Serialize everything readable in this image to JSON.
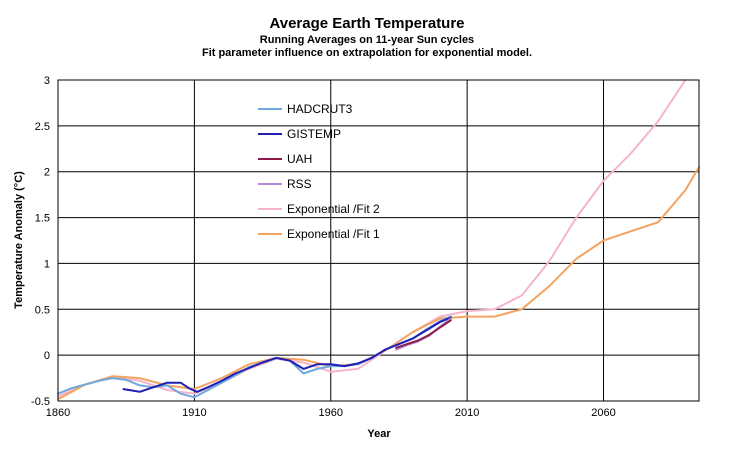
{
  "chart_data": {
    "type": "line",
    "title": "Average Earth Temperature",
    "subtitle": [
      "Running Averages on 11-year Sun cycles",
      "Fit parameter influence on extrapolation for exponential model."
    ],
    "xlabel": "Year",
    "ylabel": "Temperature Anomaly (°C)",
    "xlim": [
      1860,
      2095
    ],
    "ylim": [
      -0.5,
      3
    ],
    "x_ticks": [
      1860,
      1910,
      1960,
      2010,
      2060
    ],
    "y_ticks": [
      -0.5,
      0,
      0.5,
      1,
      1.5,
      2,
      2.5,
      3
    ],
    "y_tick_labels": [
      "-0.5",
      "0",
      "0.5",
      "1",
      "1.5",
      "2",
      "2.5",
      "3"
    ],
    "grid": true,
    "legend_position": "top-center",
    "series": [
      {
        "name": "HADCRUT3",
        "color": "#6fa8dc",
        "x": [
          1860,
          1865,
          1870,
          1875,
          1880,
          1885,
          1890,
          1895,
          1900,
          1905,
          1910,
          1915,
          1920,
          1925,
          1930,
          1935,
          1940,
          1945,
          1950,
          1955,
          1960,
          1965,
          1970,
          1975,
          1980,
          1985,
          1990,
          1995,
          2000,
          2004
        ],
        "y": [
          -0.42,
          -0.36,
          -0.32,
          -0.28,
          -0.25,
          -0.27,
          -0.33,
          -0.35,
          -0.33,
          -0.42,
          -0.46,
          -0.38,
          -0.3,
          -0.22,
          -0.13,
          -0.08,
          -0.03,
          -0.06,
          -0.2,
          -0.15,
          -0.12,
          -0.12,
          -0.1,
          -0.03,
          0.06,
          0.12,
          0.18,
          0.28,
          0.37,
          0.42
        ]
      },
      {
        "name": "GISTEMP",
        "color": "#1f1fb4",
        "x": [
          1884,
          1890,
          1895,
          1900,
          1905,
          1908,
          1911,
          1915,
          1920,
          1925,
          1930,
          1935,
          1940,
          1945,
          1950,
          1955,
          1960,
          1965,
          1970,
          1975,
          1980,
          1985,
          1990,
          1995,
          2000,
          2004
        ],
        "y": [
          -0.37,
          -0.4,
          -0.35,
          -0.3,
          -0.3,
          -0.36,
          -0.4,
          -0.35,
          -0.28,
          -0.2,
          -0.14,
          -0.08,
          -0.03,
          -0.06,
          -0.15,
          -0.1,
          -0.1,
          -0.12,
          -0.09,
          -0.03,
          0.06,
          0.12,
          0.18,
          0.27,
          0.36,
          0.41
        ]
      },
      {
        "name": "UAH",
        "color": "#8b1a4a",
        "x": [
          1984,
          1988,
          1992,
          1996,
          2000,
          2004
        ],
        "y": [
          0.08,
          0.12,
          0.16,
          0.22,
          0.3,
          0.38
        ]
      },
      {
        "name": "RSS",
        "color": "#b18ad6",
        "x": [
          1984,
          1988,
          1992,
          1996,
          2000,
          2004
        ],
        "y": [
          0.06,
          0.11,
          0.15,
          0.21,
          0.31,
          0.4
        ]
      },
      {
        "name": "Exponential /Fit 2",
        "color": "#f6b3cc",
        "x": [
          1860,
          1870,
          1880,
          1890,
          1900,
          1910,
          1920,
          1930,
          1940,
          1950,
          1960,
          1970,
          1980,
          1990,
          2000,
          2010,
          2020,
          2030,
          2040,
          2050,
          2060,
          2070,
          2080,
          2090
        ],
        "y": [
          -0.45,
          -0.32,
          -0.24,
          -0.28,
          -0.38,
          -0.42,
          -0.3,
          -0.15,
          -0.04,
          -0.08,
          -0.18,
          -0.15,
          0.05,
          0.25,
          0.42,
          0.48,
          0.5,
          0.65,
          1.02,
          1.5,
          1.9,
          2.2,
          2.55,
          3.0
        ]
      },
      {
        "name": "Exponential /Fit 1",
        "color": "#f4a460",
        "x": [
          1860,
          1870,
          1880,
          1890,
          1900,
          1910,
          1920,
          1930,
          1940,
          1950,
          1960,
          1970,
          1980,
          1990,
          2000,
          2010,
          2020,
          2030,
          2040,
          2050,
          2060,
          2070,
          2080,
          2090,
          2095
        ],
        "y": [
          -0.48,
          -0.32,
          -0.23,
          -0.25,
          -0.33,
          -0.37,
          -0.25,
          -0.1,
          -0.03,
          -0.05,
          -0.12,
          -0.1,
          0.05,
          0.25,
          0.4,
          0.42,
          0.42,
          0.5,
          0.75,
          1.05,
          1.25,
          1.35,
          1.45,
          1.8,
          2.05
        ]
      }
    ]
  }
}
